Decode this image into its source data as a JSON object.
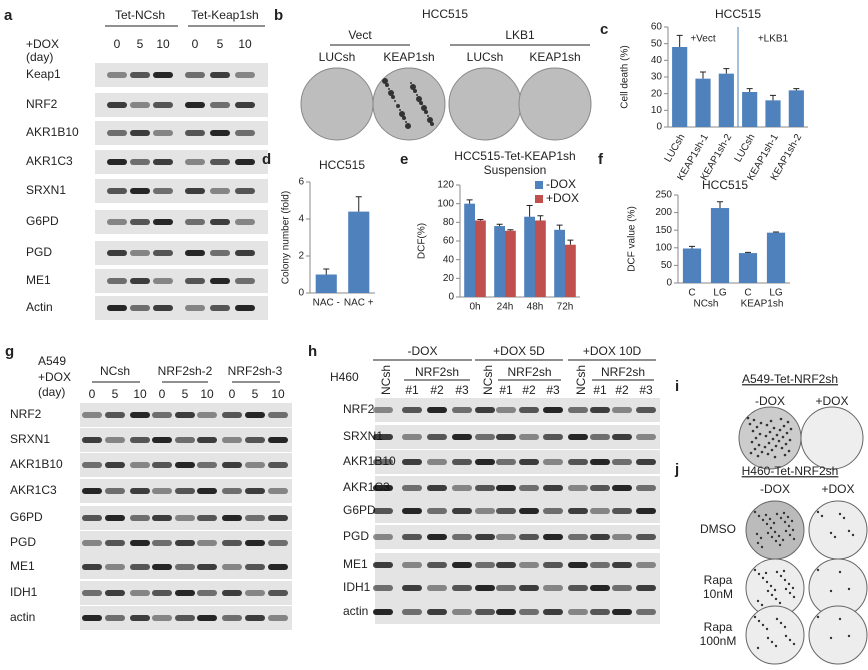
{
  "panel_a": {
    "letter": "a",
    "dox": [
      "+DOX",
      "(day)"
    ],
    "groups": [
      "Tet-NCsh",
      "Tet-Keap1sh"
    ],
    "lanes": [
      "0",
      "5",
      "10",
      "0",
      "5",
      "10"
    ],
    "rows": [
      "Keap1",
      "NRF2",
      "AKR1B10",
      "AKR1C3",
      "SRXN1",
      "G6PD",
      "PGD",
      "ME1",
      "Actin"
    ]
  },
  "panel_b": {
    "letter": "b",
    "title": "HCC515",
    "groups": [
      "Vect",
      "LKB1"
    ],
    "plates": [
      "LUCsh",
      "KEAP1sh",
      "LUCsh",
      "KEAP1sh"
    ]
  },
  "panel_g": {
    "letter": "g",
    "cell": "A549",
    "dox": [
      "+DOX",
      "(day)"
    ],
    "groups": [
      "NCsh",
      "NRF2sh-2",
      "NRF2sh-3"
    ],
    "lanes": [
      "0",
      "5",
      "10",
      "0",
      "5",
      "10",
      "0",
      "5",
      "10"
    ],
    "rows": [
      "NRF2",
      "SRXN1",
      "AKR1B10",
      "AKR1C3",
      "G6PD",
      "PGD",
      "ME1",
      "IDH1",
      "actin"
    ]
  },
  "panel_h": {
    "letter": "h",
    "cell": "H460",
    "groups": [
      {
        "label": "-DOX",
        "ctrl": "NCsh",
        "sub": "NRF2sh",
        "clones": [
          "#1",
          "#2",
          "#3"
        ]
      },
      {
        "label": "+DOX 5D",
        "ctrl": "NCsh",
        "sub": "NRF2sh",
        "clones": [
          "#1",
          "#2",
          "#3"
        ]
      },
      {
        "label": "+DOX 10D",
        "ctrl": "NCsh",
        "sub": "NRF2sh",
        "clones": [
          "#1",
          "#2",
          "#3"
        ]
      }
    ],
    "rows": [
      "NRF2",
      "SRXN1",
      "AKR1B10",
      "AKR1C3",
      "G6PD",
      "PGD",
      "ME1",
      "IDH1",
      "actin"
    ]
  },
  "panel_i": {
    "letter": "i",
    "title": "A549-Tet-NRF2sh",
    "columns": [
      "-DOX",
      "+DOX"
    ]
  },
  "panel_j": {
    "letter": "j",
    "title": "H460-Tet-NRF2sh",
    "columns": [
      "-DOX",
      "+DOX"
    ],
    "rows": [
      [
        "DMSO"
      ],
      [
        "Rapa",
        "10nM"
      ],
      [
        "Rapa",
        "100nM"
      ]
    ]
  },
  "chart_data": [
    {
      "type": "bar",
      "letter": "c",
      "title": "HCC515",
      "y_label": "Cell death (%)",
      "categories": [
        "LUCsh",
        "KEAP1sh-1",
        "KEAP1sh-2",
        "LUCsh",
        "KEAP1sh-1",
        "KEAP1sh-2"
      ],
      "values": [
        48,
        29,
        32,
        21,
        16,
        22
      ],
      "errors": [
        7,
        4,
        3,
        2,
        3,
        1
      ],
      "color": "#4f81bd",
      "ylim": [
        0,
        60
      ],
      "yticks": [
        0,
        10,
        20,
        30,
        40,
        50,
        60
      ],
      "annotations": [
        "+Vect",
        "+LKB1"
      ]
    },
    {
      "type": "bar",
      "letter": "d",
      "title": "HCC515",
      "y_label": "Colony number (fold)",
      "categories": [
        "NAC -",
        "NAC +"
      ],
      "values": [
        1,
        4.4
      ],
      "errors": [
        0.3,
        0.8
      ],
      "color": "#4f81bd",
      "ylim": [
        0,
        6
      ],
      "yticks": [
        0,
        2,
        4,
        6
      ]
    },
    {
      "type": "bar",
      "letter": "e",
      "title": "HCC515-Tet-KEAP1sh",
      "subtitle": "Suspension",
      "y_label": "DCF(%)",
      "categories": [
        "0h",
        "24h",
        "48h",
        "72h"
      ],
      "series": [
        {
          "name": "-DOX",
          "color": "#4f81bd",
          "values": [
            100,
            76,
            86,
            72
          ],
          "errors": [
            4,
            2,
            12,
            5
          ]
        },
        {
          "name": "+DOX",
          "color": "#c0504d",
          "values": [
            82,
            71,
            82,
            56
          ],
          "errors": [
            1,
            1,
            5,
            5
          ]
        }
      ],
      "ylim": [
        0,
        120
      ],
      "yticks": [
        0,
        20,
        40,
        60,
        80,
        100,
        120
      ]
    },
    {
      "type": "bar",
      "letter": "f",
      "title": "HCC515",
      "y_label": "DCF value (%)",
      "categories": [
        "C",
        "LG",
        "C",
        "LG"
      ],
      "group_labels": [
        "NCsh",
        "KEAP1sh"
      ],
      "values": [
        98,
        213,
        85,
        143
      ],
      "errors": [
        6,
        18,
        2,
        2
      ],
      "color": "#4f81bd",
      "ylim": [
        0,
        250
      ],
      "yticks": [
        0,
        50,
        100,
        150,
        200,
        250
      ]
    }
  ]
}
